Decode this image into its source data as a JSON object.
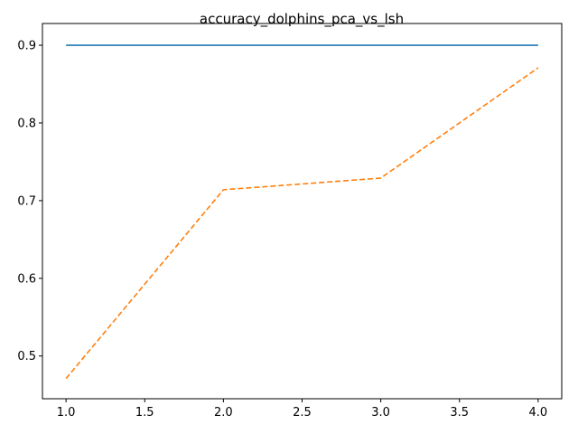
{
  "chart_data": {
    "type": "line",
    "title": "accuracy_dolphins_pca_vs_lsh",
    "xlabel": "",
    "ylabel": "",
    "xlim": [
      0.85,
      4.15
    ],
    "ylim": [
      0.445,
      0.928
    ],
    "xticks": [
      1.0,
      1.5,
      2.0,
      2.5,
      3.0,
      3.5,
      4.0
    ],
    "xtick_labels": [
      "1.0",
      "1.5",
      "2.0",
      "2.5",
      "3.0",
      "3.5",
      "4.0"
    ],
    "yticks": [
      0.5,
      0.6,
      0.7,
      0.8,
      0.9
    ],
    "ytick_labels": [
      "0.5",
      "0.6",
      "0.7",
      "0.8",
      "0.9"
    ],
    "grid": false,
    "legend": "none",
    "series": [
      {
        "x": [
          1,
          2,
          3,
          4
        ],
        "values": [
          0.9,
          0.9,
          0.9,
          0.9
        ],
        "color": "#1f77b4",
        "style": "solid"
      },
      {
        "x": [
          1,
          2,
          3,
          4
        ],
        "values": [
          0.471,
          0.714,
          0.729,
          0.871
        ],
        "color": "#ff7f0e",
        "style": "dashed"
      }
    ]
  }
}
